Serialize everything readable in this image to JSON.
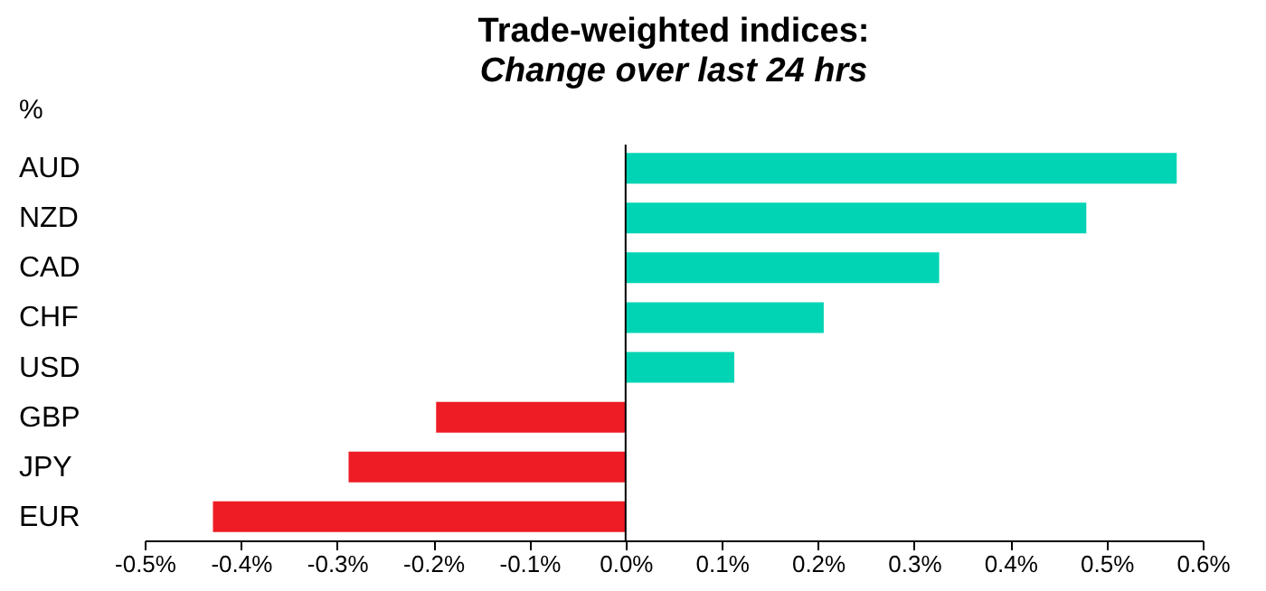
{
  "chart_data": {
    "type": "bar",
    "orientation": "horizontal",
    "title": "Trade-weighted indices:",
    "subtitle": "Change over last 24 hrs",
    "ylabel": "%",
    "categories": [
      "AUD",
      "NZD",
      "CAD",
      "CHF",
      "USD",
      "GBP",
      "JPY",
      "EUR"
    ],
    "values": [
      0.573,
      0.479,
      0.326,
      0.206,
      0.113,
      -0.197,
      -0.288,
      -0.429
    ],
    "colors": [
      "#00d4b4",
      "#00d4b4",
      "#00d4b4",
      "#00d4b4",
      "#00d4b4",
      "#ee1c25",
      "#ee1c25",
      "#ee1c25"
    ],
    "xlim": [
      -0.5,
      0.6
    ],
    "xticks": [
      {
        "value": -0.5,
        "label": "-0.5%"
      },
      {
        "value": -0.4,
        "label": "-0.4%"
      },
      {
        "value": -0.3,
        "label": "-0.3%"
      },
      {
        "value": -0.2,
        "label": "-0.2%"
      },
      {
        "value": -0.1,
        "label": "-0.1%"
      },
      {
        "value": 0,
        "label": "0.0%"
      },
      {
        "value": 0.1,
        "label": "0.1%"
      },
      {
        "value": 0.2,
        "label": "0.2%"
      },
      {
        "value": 0.3,
        "label": "0.3%"
      },
      {
        "value": 0.4,
        "label": "0.4%"
      },
      {
        "value": 0.5,
        "label": "0.5%"
      },
      {
        "value": 0.6,
        "label": "0.6%"
      }
    ],
    "ref_lines": [
      {
        "axis": "x",
        "value": 0,
        "color": "#000000"
      }
    ]
  }
}
